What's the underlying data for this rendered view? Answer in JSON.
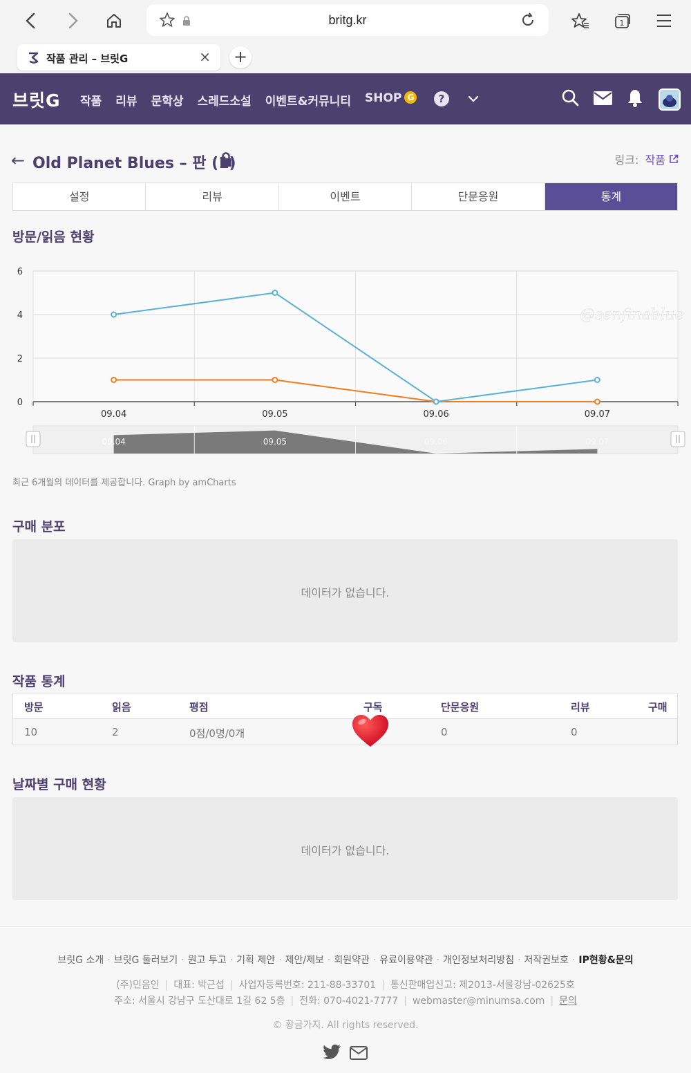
{
  "browser": {
    "url": "britg.kr",
    "tab_title": "작품 관리 – 브릿G",
    "close_label": "×",
    "new_tab_label": "+"
  },
  "site": {
    "logo": "브릿G",
    "menu": [
      "작품",
      "리뷰",
      "문학상",
      "스레드소설",
      "이벤트&커뮤니티",
      "SHOP"
    ],
    "shop_badge": "G",
    "help_label": "?"
  },
  "page": {
    "title": "Old Planet Blues – 판 (1)",
    "link_label": "링크:",
    "link_value": "작품"
  },
  "tabs": [
    "설정",
    "리뷰",
    "이벤트",
    "단문응원",
    "통계"
  ],
  "active_tab": "통계",
  "sections": {
    "visits": "방문/읽음 현황",
    "purchase_dist": "구매 분포",
    "work_stats": "작품 통계",
    "daily_purchase": "날짜별 구매 현황"
  },
  "chart_note": "최근 6개월의 데이터를 제공합니다. Graph by amCharts",
  "empty_message": "데이터가 없습니다.",
  "chart_data": {
    "type": "line",
    "x": [
      "09.04",
      "09.05",
      "09.06",
      "09.07"
    ],
    "ylim": [
      0,
      6
    ],
    "yticks": [
      0,
      2,
      4,
      6
    ],
    "series": [
      {
        "values": [
          4,
          5,
          0,
          1
        ],
        "color": "#5ab0d6"
      },
      {
        "values": [
          1,
          1,
          0,
          0
        ],
        "color": "#f07c22"
      }
    ],
    "grid": true,
    "watermark": "@senfinablue"
  },
  "stats_table": {
    "headers": [
      "방문",
      "읽음",
      "평점",
      "구독",
      "단문응원",
      "리뷰",
      "구매"
    ],
    "values": [
      "10",
      "2",
      "0점/0명/0개",
      "",
      "0",
      "0",
      ""
    ]
  },
  "footer": {
    "links": [
      "브릿G 소개",
      "브릿G 둘러보기",
      "원고 투고",
      "기획 제안",
      "제안/제보",
      "회원약관",
      "유료이용약관",
      "개인정보처리방침",
      "저작권보호",
      "IP현황&문의"
    ],
    "info_line1": [
      "(주)민음인",
      "대표: 박근섭",
      "사업자등록번호: 211-88-33701",
      "통신판매업신고: 제2013-서울강남-02625호"
    ],
    "info_line2": [
      "주소: 서울시 강남구 도산대로 1길 62 5층",
      "전화: 070-4021-7777",
      "webmaster@minumsa.com",
      "문의"
    ],
    "copyright": "© 황금가지. All rights reserved."
  },
  "colors": {
    "header_bg": "#4b416e",
    "active_tab": "#5a4e96",
    "accent_text": "#4b416e",
    "series_blue": "#5ab0d6",
    "series_orange": "#f07c22"
  }
}
